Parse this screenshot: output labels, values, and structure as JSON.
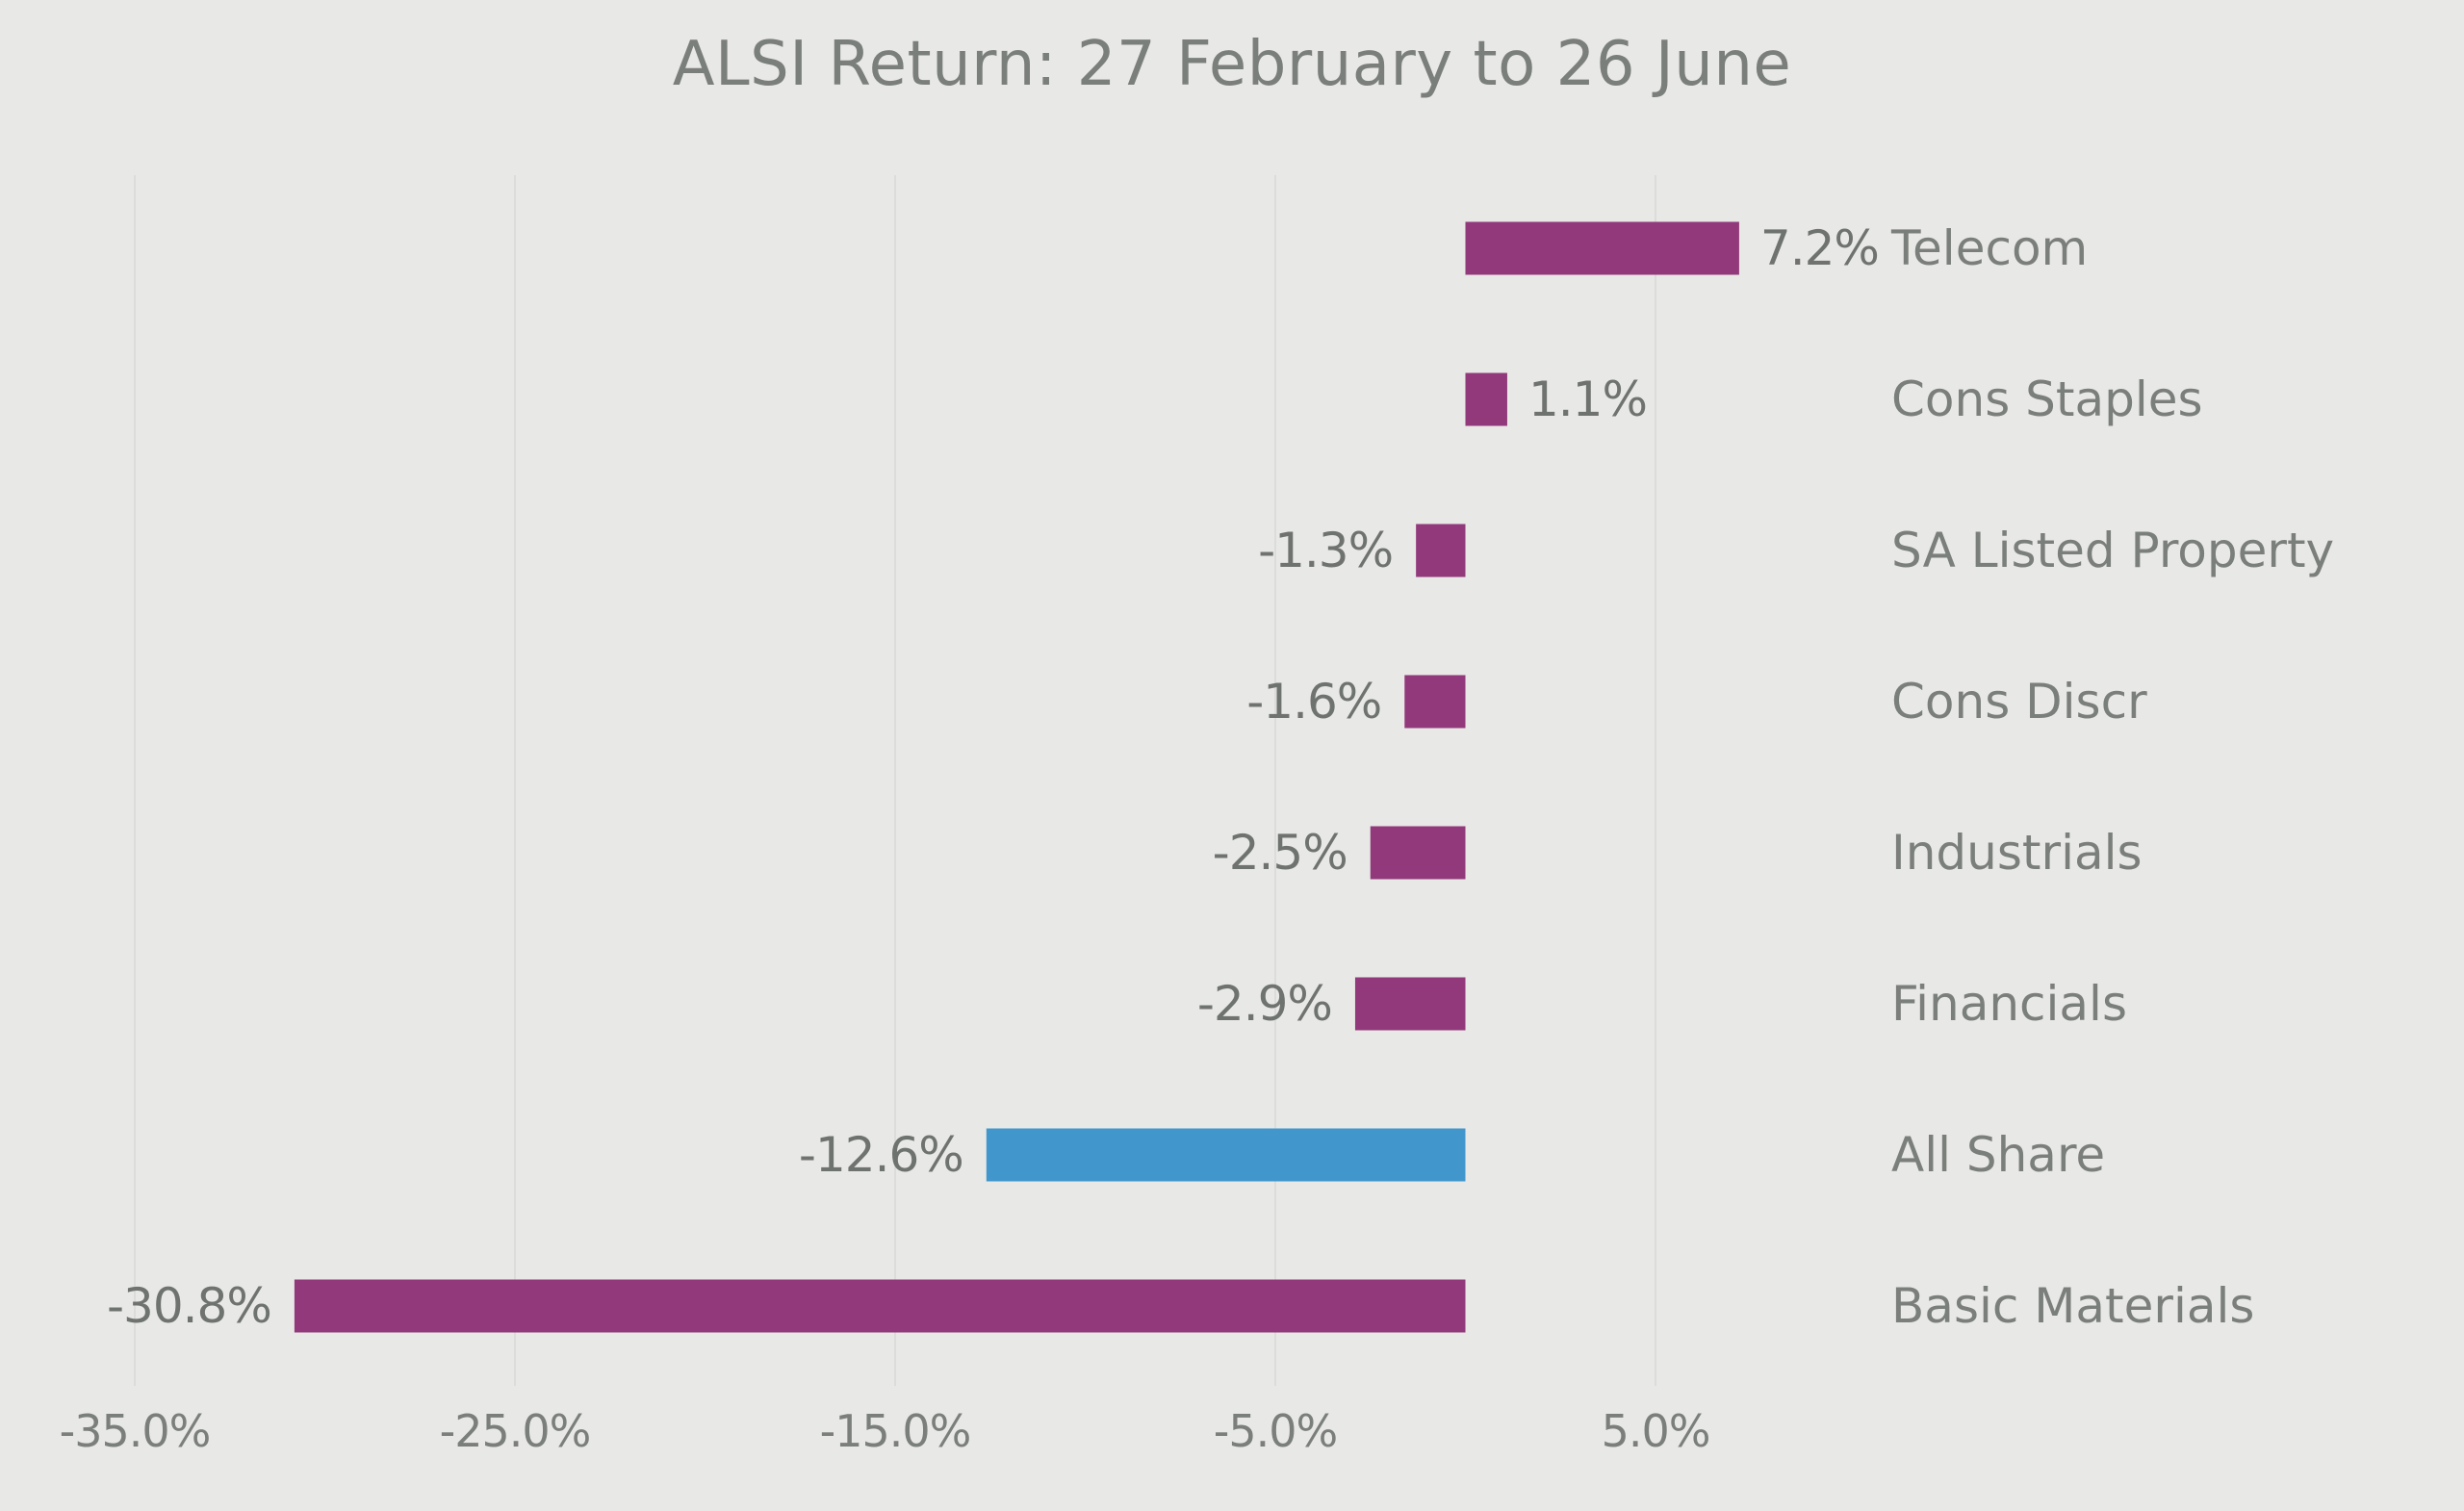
{
  "chart_data": {
    "type": "bar",
    "orientation": "horizontal",
    "title": "ALSI Return: 27 February to 26 June",
    "categories": [
      "Telecom",
      "Cons Staples",
      "SA Listed Property",
      "Cons Discr",
      "Industrials",
      "Financials",
      "All Share",
      "Basic Materials"
    ],
    "values": [
      7.2,
      1.1,
      -1.3,
      -1.6,
      -2.5,
      -2.9,
      -12.6,
      -30.8
    ],
    "data_labels": [
      "7.2%",
      "1.1%",
      "-1.3%",
      "-1.6%",
      "-2.5%",
      "-2.9%",
      "-12.6%",
      "-30.8%"
    ],
    "bar_colors": [
      "#91397b",
      "#91397b",
      "#91397b",
      "#91397b",
      "#91397b",
      "#91397b",
      "#4197cc",
      "#91397b"
    ],
    "xlim": [
      -35,
      15
    ],
    "x_ticks": [
      -35,
      -25,
      -15,
      -5,
      5
    ],
    "x_tick_labels": [
      "-35.0%",
      "-25.0%",
      "-15.0%",
      "-5.0%",
      "5.0%"
    ],
    "xlabel": "",
    "ylabel": "",
    "grid": "vertical",
    "legend": "none"
  }
}
